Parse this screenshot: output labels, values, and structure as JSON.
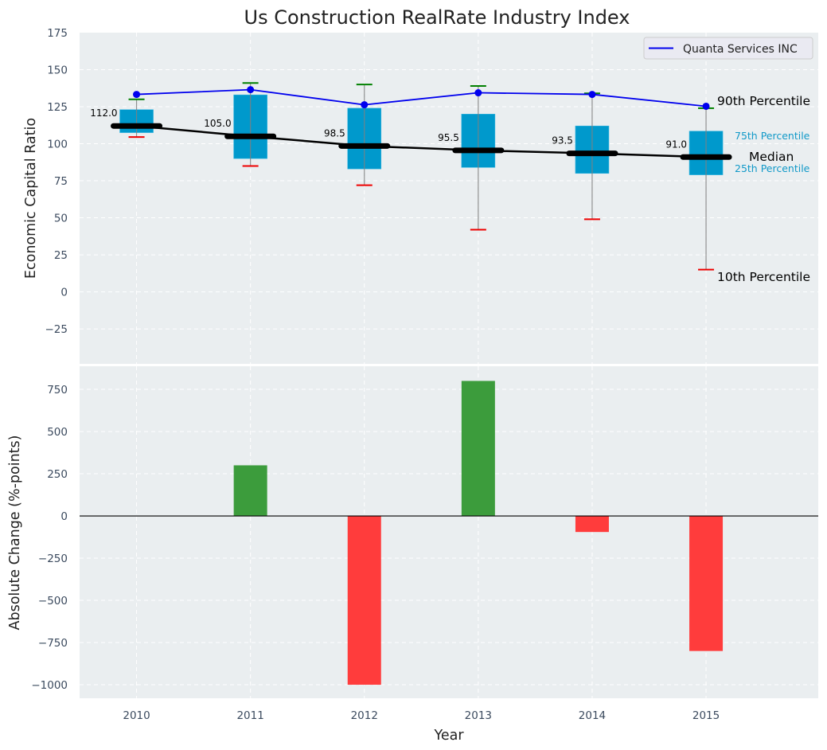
{
  "chart_data": [
    {
      "type": "box",
      "title": "Us Construction RealRate Industry Index",
      "xlabel": "",
      "ylabel": "Economic Capital Ratio",
      "ylim": [
        -48.6,
        175
      ],
      "yticks": [
        -25,
        0,
        25,
        50,
        75,
        100,
        125,
        150,
        175
      ],
      "ytick_labels": [
        "−25",
        "0",
        "25",
        "50",
        "75",
        "100",
        "125",
        "150",
        "175"
      ],
      "grid": true,
      "categories": [
        "2010",
        "2011",
        "2012",
        "2013",
        "2014",
        "2015"
      ],
      "boxes": {
        "p10": [
          104.5,
          85,
          72,
          42,
          49,
          15
        ],
        "p25": [
          107.5,
          90,
          83,
          84,
          80,
          79
        ],
        "median": [
          112.0,
          105.0,
          98.5,
          95.5,
          93.5,
          91.0
        ],
        "p75": [
          123,
          133,
          124,
          120,
          112,
          108.5
        ],
        "p90": [
          130,
          141,
          140,
          139,
          134,
          124
        ]
      },
      "median_labels": [
        "112.0",
        "105.0",
        "98.5",
        "95.5",
        "93.5",
        "91.0"
      ],
      "series": [
        {
          "name": "Quanta Services INC",
          "values": [
            133.3,
            136.5,
            126.3,
            134.4,
            133.3,
            125.3
          ],
          "color": "#0000ee"
        }
      ],
      "legend": {
        "position": "top-right",
        "entries": [
          "Quanta Services INC"
        ]
      },
      "annotations": {
        "p90": "90th Percentile",
        "p75": "75th Percentile",
        "median": "Median",
        "p25": "25th Percentile",
        "p10": "10th Percentile"
      },
      "colors": {
        "box": "#0099cc",
        "median": "#000000",
        "p90_cap": "#008000",
        "p10_cap": "#ee0000",
        "whisker": "#808080",
        "company_line": "#0000ee",
        "pct_small_label": "#1199c8",
        "plot_bg": "#eaeef0"
      }
    },
    {
      "type": "bar",
      "title": "",
      "xlabel": "Year",
      "ylabel": "Absolute Change (%-points)",
      "ylim": [
        -1080,
        887
      ],
      "yticks": [
        -1000,
        -750,
        -500,
        -250,
        0,
        250,
        500,
        750
      ],
      "ytick_labels": [
        "−1000",
        "−750",
        "−500",
        "−250",
        "0",
        "250",
        "500",
        "750"
      ],
      "grid": true,
      "categories": [
        "2010",
        "2011",
        "2012",
        "2013",
        "2014",
        "2015"
      ],
      "values": [
        0,
        300,
        -1000,
        800,
        -95,
        -800
      ],
      "colors": {
        "positive": "#3c9c3c",
        "negative": "#ff3c3c",
        "zero_line": "#000000",
        "plot_bg": "#eaeef0"
      }
    }
  ]
}
